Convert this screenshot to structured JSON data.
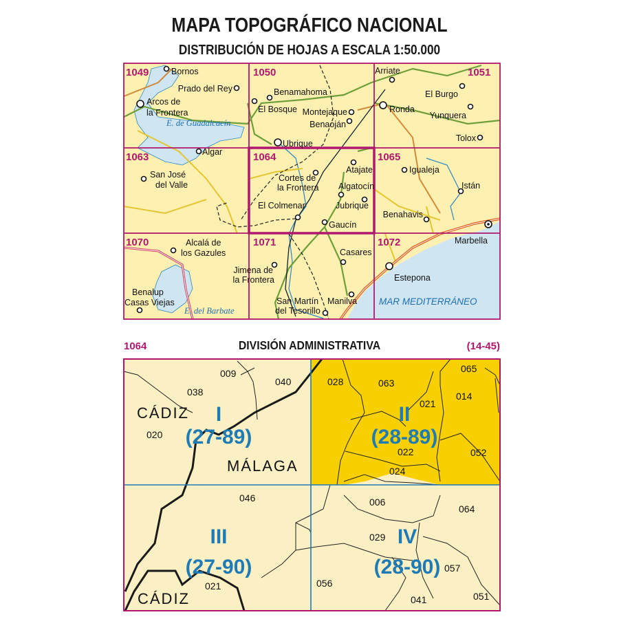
{
  "title": "MAPA TOPOGRÁFICO NACIONAL",
  "subtitle": "DISTRIBUCIÓN DE HOJAS A ESCALA 1:50.000",
  "colors": {
    "land": "#fdf0b0",
    "water": "#cfe6f2",
    "sheet_grid": "#b0176e",
    "quadrant_line": "#1e7bb5",
    "highlight": "#f8d000",
    "admin_bg": "#fbefc4"
  },
  "overview_map": {
    "sheets": [
      "1049",
      "1050",
      "1051",
      "1063",
      "1064",
      "1065",
      "1070",
      "1071",
      "1072"
    ],
    "places": {
      "bornos": "Bornos",
      "prado": "Prado del Rey",
      "arcos1": "Arcos de",
      "arcos2": "la Frontera",
      "algar": "Algar",
      "sanjose1": "San José",
      "sanjose2": "del Valle",
      "benamahoma": "Benamahoma",
      "elbosque": "El Bosque",
      "montejaque": "Montejaque",
      "benaojan": "Benaoján",
      "ubrique": "Ubrique",
      "arriate": "Arriate",
      "ronda": "Ronda",
      "elburgo": "El Burgo",
      "yunquera": "Yunquera",
      "tolox": "Tolox",
      "atajate": "Atajate",
      "cortes1": "Cortes de",
      "cortes2": "la Frontera",
      "algatocin": "Algatocín",
      "jubrique": "Jubrique",
      "colmenar": "El Colmenar",
      "gaucin": "Gaucín",
      "igualeja": "Igualeja",
      "istan": "Istán",
      "benahavis": "Benahavis",
      "marbella": "Marbella",
      "alcala1": "Alcalá de",
      "alcala2": "los Gazules",
      "jimena1": "Jimena de",
      "jimena2": "la Frontera",
      "casares": "Casares",
      "estepona": "Estepona",
      "sanmartin1": "San Martín",
      "sanmartin2": "del Tesorillo",
      "manilva": "Manilva",
      "benalup1": "Benalup",
      "benalup2": "Casas Viejas"
    },
    "water_labels": {
      "guadalcacin": "E. de Guadalcacín",
      "barbate": "E. del Barbate",
      "sea": "MAR MEDITERRÁNEO"
    }
  },
  "admin": {
    "sheet": "1064",
    "title": "DIVISIÓN ADMINISTRATIVA",
    "grid_ref": "(14-45)",
    "provinces": {
      "cadiz_top": "CÁDIZ",
      "malaga": "MÁLAGA",
      "cadiz_bottom": "CÁDIZ"
    },
    "quadrants": [
      {
        "numeral": "I",
        "ref": "(27-89)",
        "highlighted": false
      },
      {
        "numeral": "II",
        "ref": "(28-89)",
        "highlighted": true
      },
      {
        "numeral": "III",
        "ref": "(27-90)",
        "highlighted": false
      },
      {
        "numeral": "IV",
        "ref": "(28-90)",
        "highlighted": false
      }
    ],
    "municipality_codes": [
      "009",
      "040",
      "038",
      "020",
      "028",
      "063",
      "021",
      "014",
      "065",
      "022",
      "052",
      "024",
      "046",
      "006",
      "064",
      "029",
      "057",
      "056",
      "021",
      "041",
      "051"
    ]
  }
}
